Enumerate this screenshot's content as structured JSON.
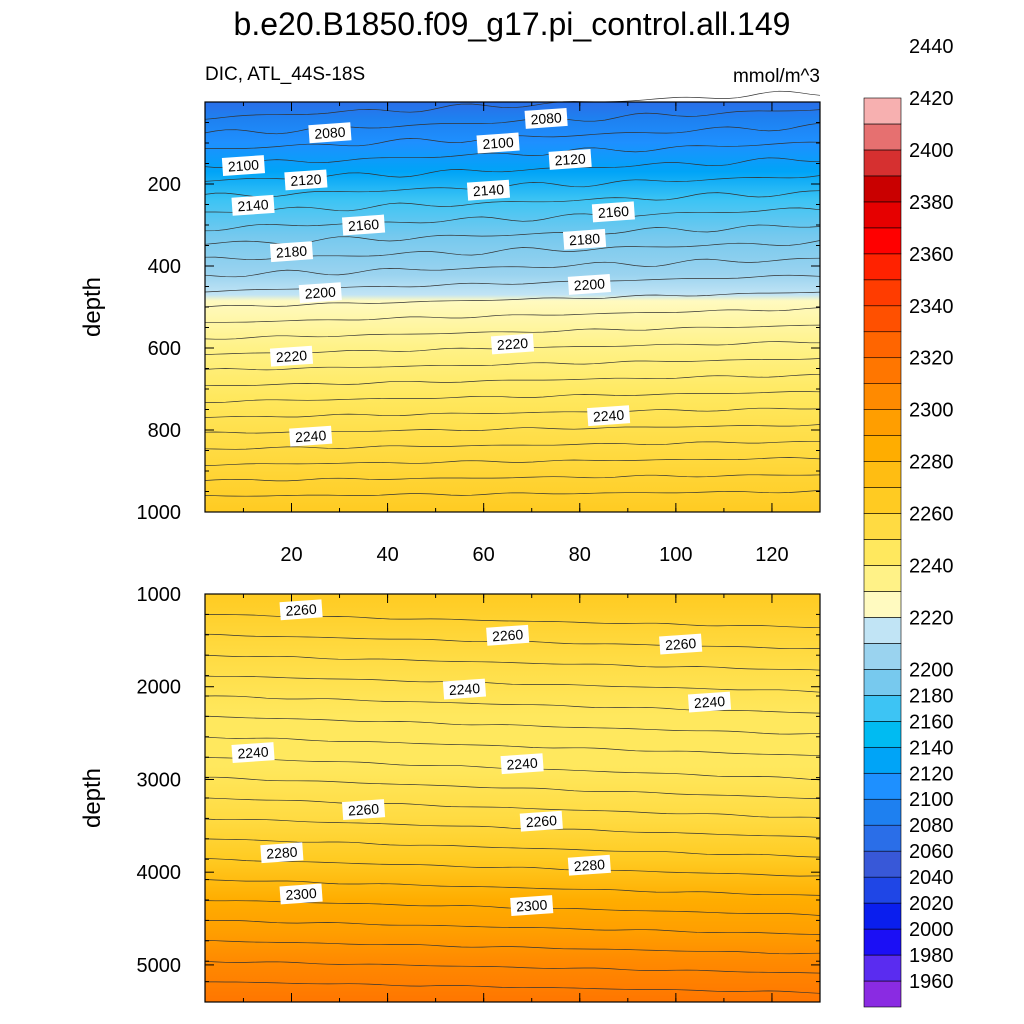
{
  "chart_data": {
    "type": "contour",
    "title": "b.e20.B1850.f09_g17.pi_control.all.149",
    "left_subtitle": "DIC, ATL_44S-18S",
    "right_subtitle": "mmol/m^3",
    "colorbar": {
      "levels": [
        1960,
        1980,
        2000,
        2020,
        2040,
        2060,
        2080,
        2100,
        2120,
        2140,
        2160,
        2180,
        2200,
        2220,
        2240,
        2260,
        2280,
        2300,
        2320,
        2340,
        2360,
        2380,
        2400,
        2420,
        2440
      ],
      "colors": [
        "#8a2be2",
        "#5a2cf0",
        "#1b0ff5",
        "#0a1eee",
        "#1f46e6",
        "#3858d8",
        "#2a6ee8",
        "#1e80f0",
        "#1e90ff",
        "#00a4f7",
        "#00bbf2",
        "#3dc4f4",
        "#77c9ee",
        "#9ad3ef",
        "#c1e4f5",
        "#fffac0",
        "#fff287",
        "#ffe85e",
        "#ffdb42",
        "#ffcb22",
        "#ffbd12",
        "#ffad00",
        "#ff9e00",
        "#ff8a00",
        "#ff7600",
        "#ff6500",
        "#ff5000",
        "#ff3c00",
        "#ff2200",
        "#ff0000",
        "#e60000",
        "#c90000",
        "#d63030",
        "#e67070",
        "#f7b0b0"
      ]
    },
    "panels": [
      {
        "name": "upper",
        "ylabel": "depth",
        "ylim": [
          1000,
          0
        ],
        "xlim": [
          2,
          130
        ],
        "yticks": [
          "200",
          "400",
          "600",
          "800",
          "1000"
        ],
        "xticks": [
          "20",
          "40",
          "60",
          "80",
          "100",
          "120"
        ],
        "contour_labels": [
          {
            "text": "2080",
            "x": 28,
            "y": 75
          },
          {
            "text": "2080",
            "x": 73,
            "y": 40
          },
          {
            "text": "2100",
            "x": 10,
            "y": 155
          },
          {
            "text": "2100",
            "x": 63,
            "y": 100
          },
          {
            "text": "2120",
            "x": 23,
            "y": 190
          },
          {
            "text": "2120",
            "x": 78,
            "y": 140
          },
          {
            "text": "2140",
            "x": 12,
            "y": 252
          },
          {
            "text": "2140",
            "x": 61,
            "y": 215
          },
          {
            "text": "2160",
            "x": 35,
            "y": 300
          },
          {
            "text": "2160",
            "x": 87,
            "y": 268
          },
          {
            "text": "2180",
            "x": 20,
            "y": 365
          },
          {
            "text": "2180",
            "x": 81,
            "y": 335
          },
          {
            "text": "2200",
            "x": 26,
            "y": 465
          },
          {
            "text": "2200",
            "x": 82,
            "y": 445
          },
          {
            "text": "2220",
            "x": 20,
            "y": 620
          },
          {
            "text": "2220",
            "x": 66,
            "y": 590
          },
          {
            "text": "2240",
            "x": 24,
            "y": 815
          },
          {
            "text": "2240",
            "x": 86,
            "y": 765
          }
        ]
      },
      {
        "name": "lower",
        "ylabel": "depth",
        "ylim": [
          5400,
          1000
        ],
        "yticks": [
          "1000",
          "2000",
          "3000",
          "4000",
          "5000"
        ],
        "xticks": [],
        "contour_labels": [
          {
            "text": "2260",
            "x": 22,
            "y": 1170
          },
          {
            "text": "2260",
            "x": 65,
            "y": 1445
          },
          {
            "text": "2260",
            "x": 101,
            "y": 1540
          },
          {
            "text": "2240",
            "x": 56,
            "y": 2025
          },
          {
            "text": "2240",
            "x": 107,
            "y": 2165
          },
          {
            "text": "2240",
            "x": 12,
            "y": 2710
          },
          {
            "text": "2240",
            "x": 68,
            "y": 2830
          },
          {
            "text": "2260",
            "x": 35,
            "y": 3325
          },
          {
            "text": "2260",
            "x": 72,
            "y": 3450
          },
          {
            "text": "2280",
            "x": 18,
            "y": 3790
          },
          {
            "text": "2280",
            "x": 82,
            "y": 3925
          },
          {
            "text": "2300",
            "x": 22,
            "y": 4235
          },
          {
            "text": "2300",
            "x": 70,
            "y": 4360
          }
        ]
      }
    ]
  }
}
